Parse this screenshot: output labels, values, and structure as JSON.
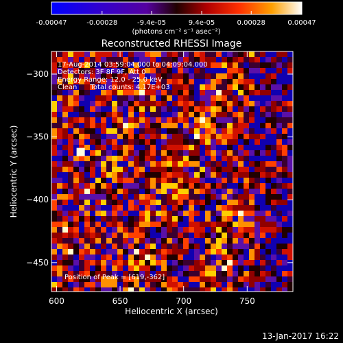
{
  "chart_data": {
    "type": "heatmap",
    "title": "Reconstructed RHESSI Image",
    "xlabel": "Heliocentric X (arcsec)",
    "ylabel": "Heliocentric Y (arcsec)",
    "xlim": [
      596,
      786
    ],
    "ylim": [
      -473,
      -282
    ],
    "x_ticks": [
      600,
      650,
      700,
      750
    ],
    "y_ticks": [
      -300,
      -350,
      -400,
      -450
    ],
    "colorbar": {
      "tick_labels": [
        "-0.00047",
        "-0.00028",
        "-9.4e-05",
        "9.4e-05",
        "0.00028",
        "0.00047"
      ],
      "tick_values": [
        -0.00047,
        -0.00028,
        -9.4e-05,
        9.4e-05,
        0.00028,
        0.00047
      ],
      "range": [
        -0.00047,
        0.00047
      ],
      "unit_label": "(photons cm⁻² s⁻¹ asec⁻²)"
    },
    "annotations": [
      "17-Aug-2014 03:59:04.000 to 04:09:04.000",
      "Detectors: 3F 8F 9F, Att 0",
      "Energy Range: 12.0 - 25.0 keV",
      "Clean      Total counts: 4.17E+03"
    ],
    "peak_label": "Position of Peak = [619,-362]",
    "peak": {
      "x": 619,
      "y": -362
    },
    "grid": false
  },
  "footer": {
    "timestamp": "13-Jan-2017 16:22"
  }
}
